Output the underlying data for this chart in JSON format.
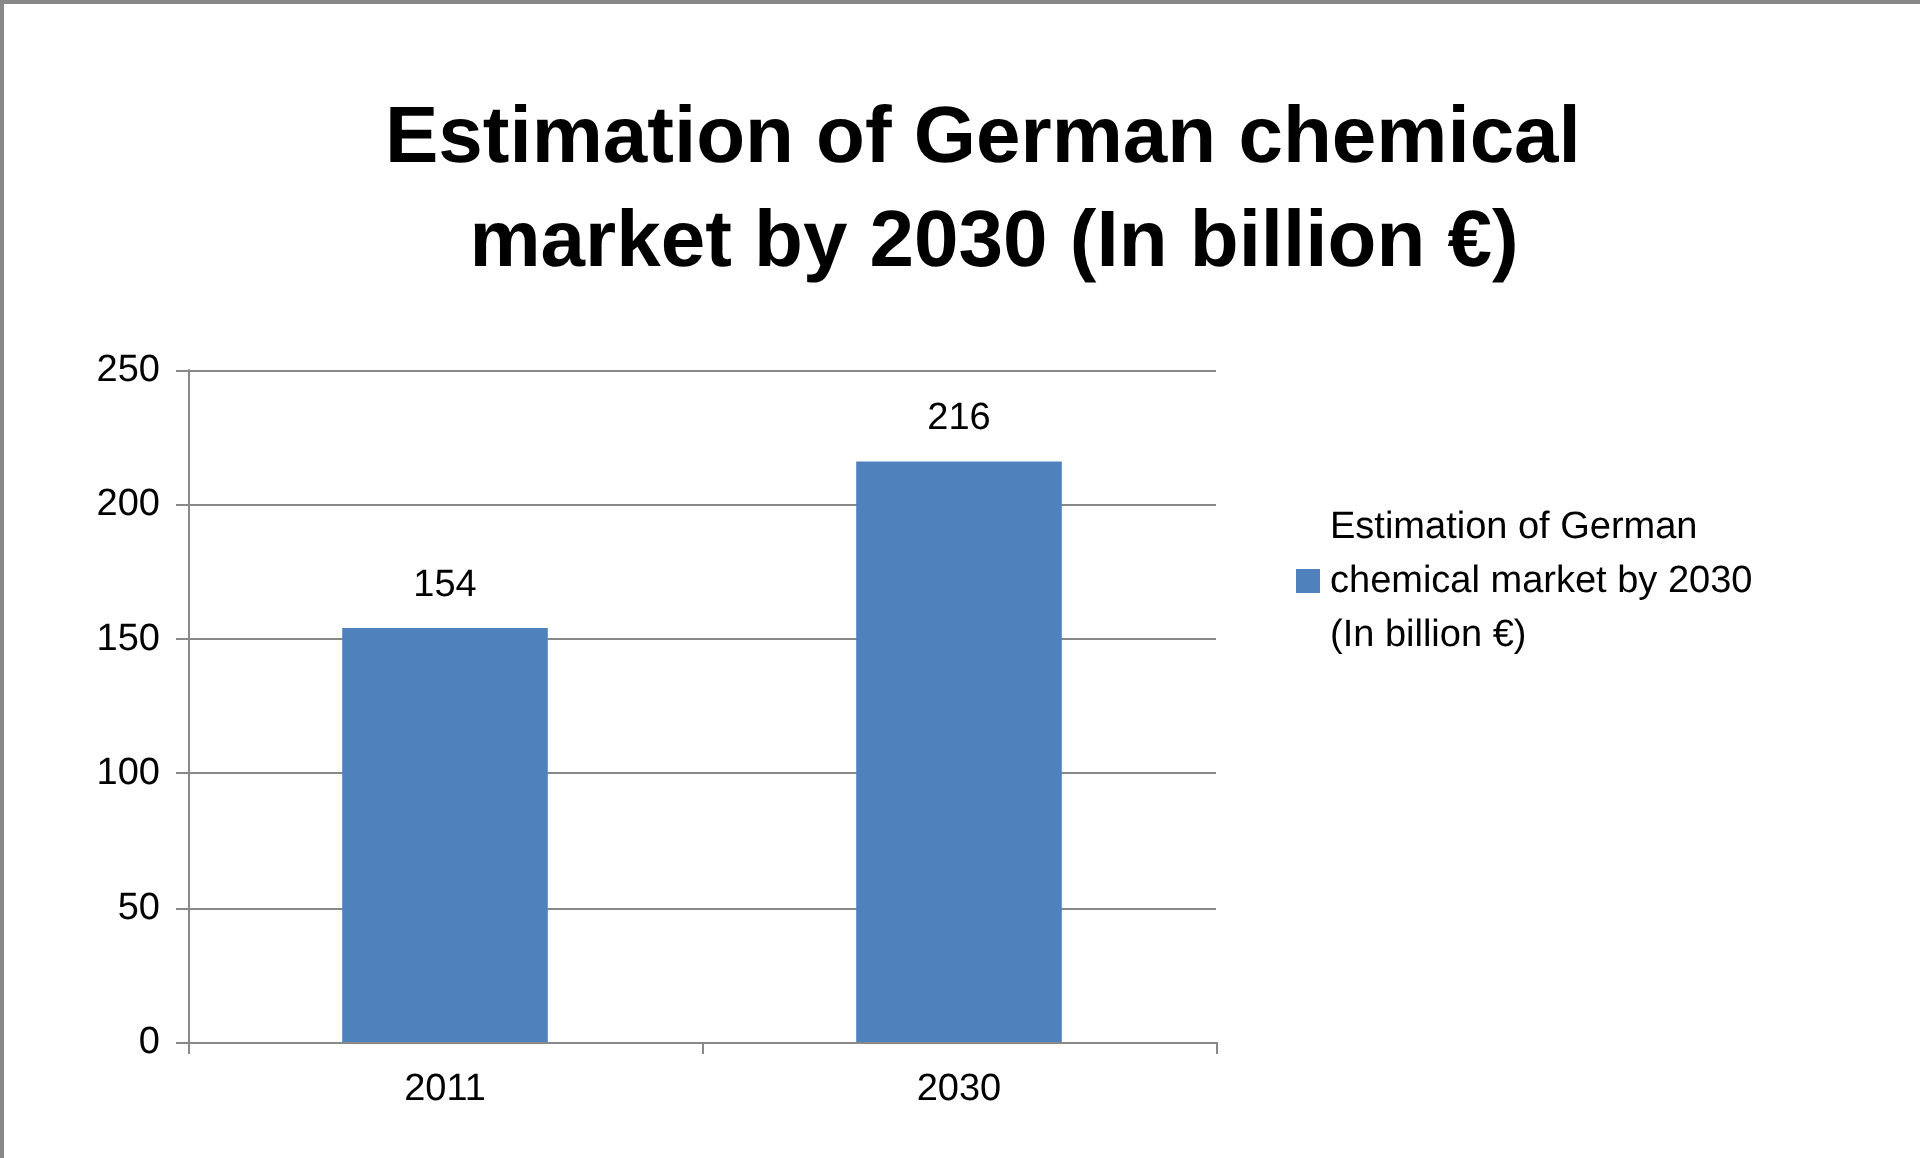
{
  "chart_data": {
    "type": "bar",
    "title": "Estimation of German chemical market by 2030 (In billion €)",
    "categories": [
      "2011",
      "2030"
    ],
    "series": [
      {
        "name": "Estimation of German chemical market by 2030 (In billion €)",
        "color": "#4f81bd",
        "values": [
          154,
          216
        ]
      }
    ],
    "ylim": [
      0,
      250
    ],
    "yticks": [
      0,
      50,
      100,
      150,
      200,
      250
    ],
    "grid": "y",
    "legend": "right",
    "data_labels": true
  }
}
